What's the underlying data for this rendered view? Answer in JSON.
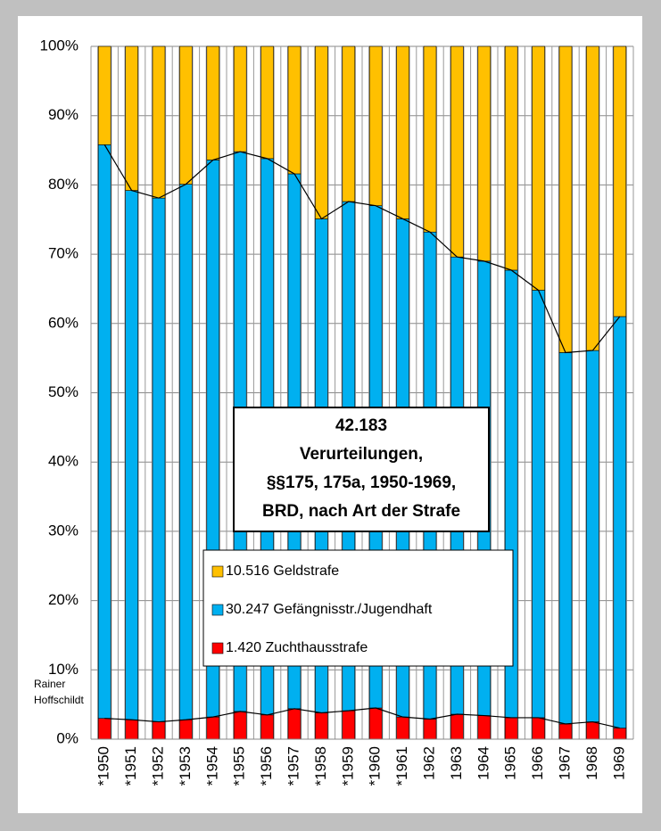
{
  "chart_data": {
    "type": "stacked_bar",
    "title_lines": [
      "42.183",
      "Verurteilungen,",
      "§§175, 175a, 1950-1969,",
      "BRD, nach Art der Strafe"
    ],
    "credit": [
      "Rainer",
      "Hoffschildt"
    ],
    "categories": [
      "*1950",
      "*1951",
      "*1952",
      "*1953",
      "*1954",
      "*1955",
      "*1956",
      "*1957",
      "*1958",
      "*1959",
      "*1960",
      "*1961",
      "1962",
      "1963",
      "1964",
      "1965",
      "1966",
      "1967",
      "1968",
      "1969"
    ],
    "series": [
      {
        "name": "1.420 Zuchthausstrafe",
        "color": "#ff0000",
        "values": [
          3.0,
          2.8,
          2.5,
          2.8,
          3.2,
          4.0,
          3.5,
          4.4,
          3.8,
          4.1,
          4.5,
          3.2,
          2.9,
          3.6,
          3.4,
          3.1,
          3.1,
          2.2,
          2.5,
          1.6
        ]
      },
      {
        "name": "30.247 Gefängnisstr./Jugendhaft",
        "color": "#00b0f0",
        "values": [
          82.8,
          76.4,
          75.6,
          77.3,
          80.4,
          80.8,
          80.3,
          77.2,
          71.3,
          73.5,
          72.5,
          71.9,
          70.3,
          66.0,
          65.6,
          64.6,
          61.7,
          53.6,
          53.6,
          59.4
        ]
      },
      {
        "name": "10.516 Geldstrafe",
        "color": "#ffc000",
        "values": [
          14.2,
          20.8,
          21.9,
          19.9,
          16.4,
          15.2,
          16.2,
          18.4,
          24.9,
          22.4,
          23.0,
          24.9,
          26.8,
          30.4,
          31.0,
          32.3,
          35.2,
          44.2,
          43.9,
          39.0
        ]
      }
    ],
    "ylim": [
      0,
      100
    ],
    "yticks": [
      {
        "value": 0,
        "label": "0%"
      },
      {
        "value": 10,
        "label": "10%"
      },
      {
        "value": 20,
        "label": "20%"
      },
      {
        "value": 30,
        "label": "30%"
      },
      {
        "value": 40,
        "label": "40%"
      },
      {
        "value": 50,
        "label": "50%"
      },
      {
        "value": 60,
        "label": "60%"
      },
      {
        "value": 70,
        "label": "70%"
      },
      {
        "value": 80,
        "label": "80%"
      },
      {
        "value": 90,
        "label": "90%"
      },
      {
        "value": 100,
        "label": "100%"
      }
    ],
    "grid": true
  }
}
